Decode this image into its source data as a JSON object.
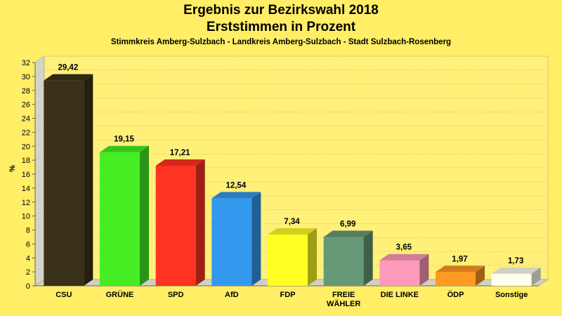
{
  "chart_data": {
    "type": "bar",
    "title": "Ergebnis zur Bezirkswahl 2018",
    "subtitle": "Erststimmen in Prozent",
    "caption": "Stimmkreis Amberg-Sulzbach - Landkreis Amberg-Sulzbach - Stadt Sulzbach-Rosenberg",
    "ylabel": "%",
    "xlabel": "",
    "ylim": [
      0,
      32
    ],
    "ytick_step": 2,
    "grid": true,
    "categories": [
      [
        "CSU"
      ],
      [
        "GRÜNE"
      ],
      [
        "SPD"
      ],
      [
        "AfD"
      ],
      [
        "FDP"
      ],
      [
        "FREIE",
        "WÄHLER"
      ],
      [
        "DIE LINKE"
      ],
      [
        "ÖDP"
      ],
      [
        "Sonstige"
      ]
    ],
    "values": [
      29.42,
      19.15,
      17.21,
      12.54,
      7.34,
      6.99,
      3.65,
      1.97,
      1.73
    ],
    "value_labels": [
      "29,42",
      "19,15",
      "17,21",
      "12,54",
      "7,34",
      "6,99",
      "3,65",
      "1,97",
      "1,73"
    ],
    "colors": [
      "#3a3218",
      "#44ee22",
      "#ff3322",
      "#3399ee",
      "#ffff22",
      "#669977",
      "#ff99bb",
      "#ff9922",
      "#ffffee"
    ]
  }
}
